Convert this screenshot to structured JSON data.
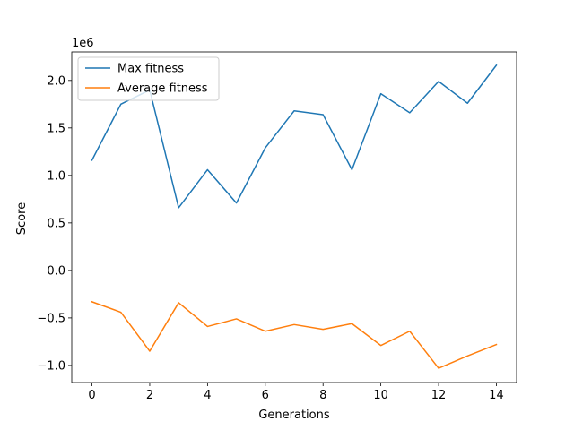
{
  "chart_data": {
    "type": "line",
    "title": "",
    "xlabel": "Generations",
    "ylabel": "Score",
    "y_offset_label": "1e6",
    "x": [
      0,
      1,
      2,
      3,
      4,
      5,
      6,
      7,
      8,
      9,
      10,
      11,
      12,
      13,
      14
    ],
    "xlim": [
      -0.7,
      14.7
    ],
    "ylim": [
      -1.18,
      2.3
    ],
    "x_ticks": [
      0,
      2,
      4,
      6,
      8,
      10,
      12,
      14
    ],
    "y_ticks": [
      -1.0,
      -0.5,
      0.0,
      0.5,
      1.0,
      1.5,
      2.0
    ],
    "y_tick_labels": [
      "−1.0",
      "−0.5",
      "0.0",
      "0.5",
      "1.0",
      "1.5",
      "2.0"
    ],
    "grid": false,
    "legend_position": "top-left",
    "series": [
      {
        "name": "Max fitness",
        "color": "#1f77b4",
        "values": [
          1.16,
          1.75,
          1.9,
          0.66,
          1.06,
          0.71,
          1.29,
          1.68,
          1.64,
          1.06,
          1.86,
          1.66,
          1.99,
          1.76,
          2.16
        ]
      },
      {
        "name": "Average fitness",
        "color": "#ff7f0e",
        "values": [
          -0.33,
          -0.44,
          -0.85,
          -0.34,
          -0.59,
          -0.51,
          -0.64,
          -0.57,
          -0.62,
          -0.56,
          -0.79,
          -0.64,
          -1.03,
          -0.9,
          -0.78
        ]
      }
    ]
  }
}
